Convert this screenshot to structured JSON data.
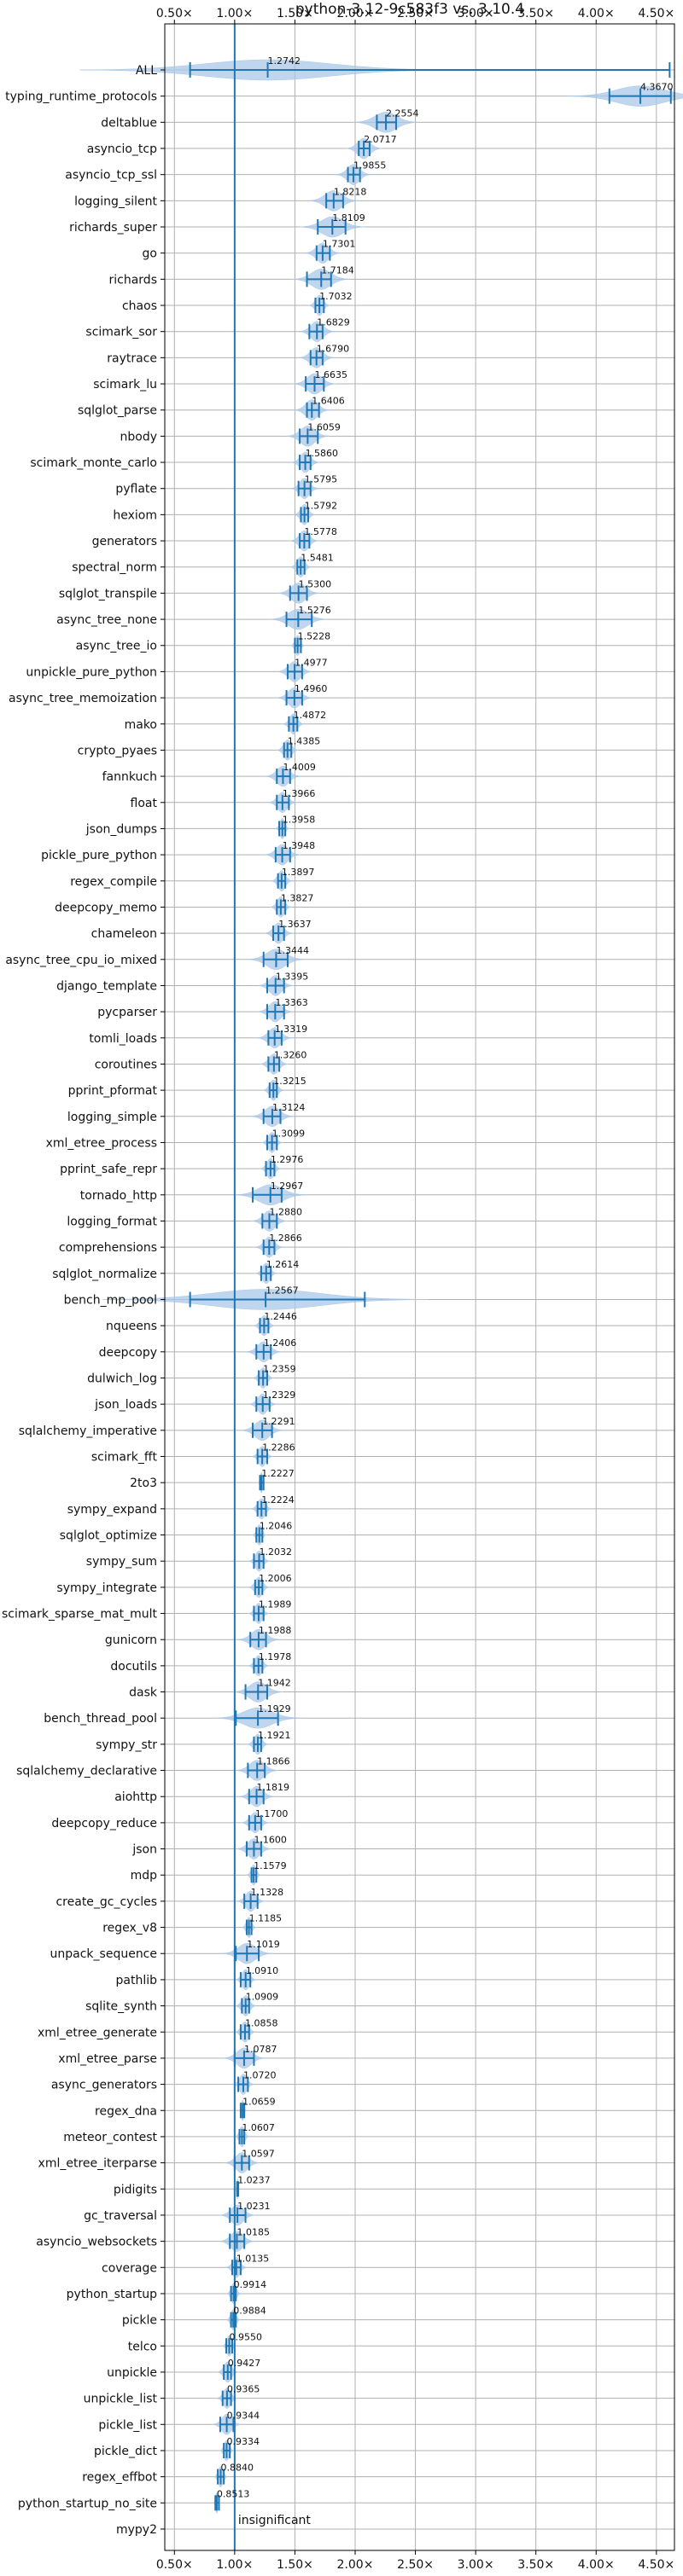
{
  "chart_data": {
    "type": "violin",
    "orientation": "horizontal",
    "title": "python-3.12-9c583f3 vs. 3.10.4",
    "x_ticks": [
      "0.50×",
      "1.00×",
      "1.50×",
      "2.00×",
      "2.50×",
      "3.00×",
      "3.50×",
      "4.00×",
      "4.50×"
    ],
    "x_tick_values": [
      0.5,
      1.0,
      1.5,
      2.0,
      2.5,
      3.0,
      3.5,
      4.0,
      4.5
    ],
    "xlim": [
      0.42,
      4.65
    ],
    "grid": true,
    "reference_line": 1.0,
    "colors": {
      "violin": "#a9c8e8",
      "line": "#1f77b4",
      "grid": "#b0b0b0"
    },
    "annotation": "insignificant",
    "benchmarks": [
      {
        "name": "ALL",
        "value": 1.2742,
        "label": "1.2742",
        "min": 0.63,
        "max": 4.61,
        "spread": 0.52
      },
      {
        "name": "typing_runtime_protocols",
        "value": 4.367,
        "label": "4.3670",
        "min": 4.11,
        "max": 4.62,
        "spread": 0.2
      },
      {
        "name": "deltablue",
        "value": 2.2554,
        "label": "2.2554",
        "min": 2.18,
        "max": 2.34,
        "spread": 0.09
      },
      {
        "name": "asyncio_tcp",
        "value": 2.0717,
        "label": "2.0717",
        "min": 2.03,
        "max": 2.12,
        "spread": 0.05
      },
      {
        "name": "asyncio_tcp_ssl",
        "value": 1.9855,
        "label": "1.9855",
        "min": 1.94,
        "max": 2.04,
        "spread": 0.05
      },
      {
        "name": "logging_silent",
        "value": 1.8218,
        "label": "1.8218",
        "min": 1.76,
        "max": 1.9,
        "spread": 0.07
      },
      {
        "name": "richards_super",
        "value": 1.8109,
        "label": "1.8109",
        "min": 1.69,
        "max": 1.92,
        "spread": 0.09
      },
      {
        "name": "go",
        "value": 1.7301,
        "label": "1.7301",
        "min": 1.68,
        "max": 1.79,
        "spread": 0.05
      },
      {
        "name": "richards",
        "value": 1.7184,
        "label": "1.7184",
        "min": 1.6,
        "max": 1.8,
        "spread": 0.08
      },
      {
        "name": "chaos",
        "value": 1.7032,
        "label": "1.7032",
        "min": 1.67,
        "max": 1.74,
        "spread": 0.03
      },
      {
        "name": "scimark_sor",
        "value": 1.6829,
        "label": "1.6829",
        "min": 1.62,
        "max": 1.73,
        "spread": 0.05
      },
      {
        "name": "raytrace",
        "value": 1.679,
        "label": "1.6790",
        "min": 1.63,
        "max": 1.73,
        "spread": 0.05
      },
      {
        "name": "scimark_lu",
        "value": 1.6635,
        "label": "1.6635",
        "min": 1.59,
        "max": 1.74,
        "spread": 0.06
      },
      {
        "name": "sqlglot_parse",
        "value": 1.6406,
        "label": "1.6406",
        "min": 1.6,
        "max": 1.7,
        "spread": 0.05
      },
      {
        "name": "nbody",
        "value": 1.6059,
        "label": "1.6059",
        "min": 1.54,
        "max": 1.69,
        "spread": 0.06
      },
      {
        "name": "scimark_monte_carlo",
        "value": 1.586,
        "label": "1.5860",
        "min": 1.54,
        "max": 1.63,
        "spread": 0.04
      },
      {
        "name": "pyflate",
        "value": 1.5795,
        "label": "1.5795",
        "min": 1.53,
        "max": 1.63,
        "spread": 0.04
      },
      {
        "name": "hexiom",
        "value": 1.5792,
        "label": "1.5792",
        "min": 1.55,
        "max": 1.61,
        "spread": 0.03
      },
      {
        "name": "generators",
        "value": 1.5778,
        "label": "1.5778",
        "min": 1.54,
        "max": 1.62,
        "spread": 0.04
      },
      {
        "name": "spectral_norm",
        "value": 1.5481,
        "label": "1.5481",
        "min": 1.52,
        "max": 1.58,
        "spread": 0.03
      },
      {
        "name": "sqlglot_transpile",
        "value": 1.53,
        "label": "1.5300",
        "min": 1.46,
        "max": 1.6,
        "spread": 0.06
      },
      {
        "name": "async_tree_none",
        "value": 1.5276,
        "label": "1.5276",
        "min": 1.43,
        "max": 1.64,
        "spread": 0.08
      },
      {
        "name": "async_tree_io",
        "value": 1.5228,
        "label": "1.5228",
        "min": 1.5,
        "max": 1.55,
        "spread": 0.02
      },
      {
        "name": "unpickle_pure_python",
        "value": 1.4977,
        "label": "1.4977",
        "min": 1.44,
        "max": 1.56,
        "spread": 0.05
      },
      {
        "name": "async_tree_memoization",
        "value": 1.496,
        "label": "1.4960",
        "min": 1.43,
        "max": 1.56,
        "spread": 0.05
      },
      {
        "name": "mako",
        "value": 1.4872,
        "label": "1.4872",
        "min": 1.45,
        "max": 1.52,
        "spread": 0.03
      },
      {
        "name": "crypto_pyaes",
        "value": 1.4385,
        "label": "1.4385",
        "min": 1.41,
        "max": 1.47,
        "spread": 0.03
      },
      {
        "name": "fannkuch",
        "value": 1.4009,
        "label": "1.4009",
        "min": 1.35,
        "max": 1.46,
        "spread": 0.05
      },
      {
        "name": "float",
        "value": 1.3966,
        "label": "1.3966",
        "min": 1.35,
        "max": 1.45,
        "spread": 0.04
      },
      {
        "name": "json_dumps",
        "value": 1.3958,
        "label": "1.3958",
        "min": 1.37,
        "max": 1.42,
        "spread": 0.02
      },
      {
        "name": "pickle_pure_python",
        "value": 1.3948,
        "label": "1.3948",
        "min": 1.34,
        "max": 1.46,
        "spread": 0.05
      },
      {
        "name": "regex_compile",
        "value": 1.3897,
        "label": "1.3897",
        "min": 1.36,
        "max": 1.42,
        "spread": 0.03
      },
      {
        "name": "deepcopy_memo",
        "value": 1.3827,
        "label": "1.3827",
        "min": 1.35,
        "max": 1.42,
        "spread": 0.03
      },
      {
        "name": "chameleon",
        "value": 1.3637,
        "label": "1.3637",
        "min": 1.32,
        "max": 1.41,
        "spread": 0.04
      },
      {
        "name": "async_tree_cpu_io_mixed",
        "value": 1.3444,
        "label": "1.3444",
        "min": 1.24,
        "max": 1.44,
        "spread": 0.08
      },
      {
        "name": "django_template",
        "value": 1.3395,
        "label": "1.3395",
        "min": 1.27,
        "max": 1.41,
        "spread": 0.05
      },
      {
        "name": "pycparser",
        "value": 1.3363,
        "label": "1.3363",
        "min": 1.27,
        "max": 1.41,
        "spread": 0.05
      },
      {
        "name": "tomli_loads",
        "value": 1.3319,
        "label": "1.3319",
        "min": 1.28,
        "max": 1.39,
        "spread": 0.05
      },
      {
        "name": "coroutines",
        "value": 1.326,
        "label": "1.3260",
        "min": 1.28,
        "max": 1.37,
        "spread": 0.04
      },
      {
        "name": "pprint_pformat",
        "value": 1.3215,
        "label": "1.3215",
        "min": 1.29,
        "max": 1.35,
        "spread": 0.03
      },
      {
        "name": "logging_simple",
        "value": 1.3124,
        "label": "1.3124",
        "min": 1.24,
        "max": 1.38,
        "spread": 0.06
      },
      {
        "name": "xml_etree_process",
        "value": 1.3099,
        "label": "1.3099",
        "min": 1.27,
        "max": 1.35,
        "spread": 0.03
      },
      {
        "name": "pprint_safe_repr",
        "value": 1.2976,
        "label": "1.2976",
        "min": 1.26,
        "max": 1.33,
        "spread": 0.03
      },
      {
        "name": "tornado_http",
        "value": 1.2967,
        "label": "1.2967",
        "min": 1.15,
        "max": 1.39,
        "spread": 0.1
      },
      {
        "name": "logging_format",
        "value": 1.288,
        "label": "1.2880",
        "min": 1.23,
        "max": 1.35,
        "spread": 0.05
      },
      {
        "name": "comprehensions",
        "value": 1.2866,
        "label": "1.2866",
        "min": 1.24,
        "max": 1.33,
        "spread": 0.04
      },
      {
        "name": "sqlglot_normalize",
        "value": 1.2614,
        "label": "1.2614",
        "min": 1.22,
        "max": 1.3,
        "spread": 0.03
      },
      {
        "name": "bench_mp_pool",
        "value": 1.2567,
        "label": "1.2567",
        "min": 0.63,
        "max": 2.08,
        "spread": 0.45
      },
      {
        "name": "nqueens",
        "value": 1.2446,
        "label": "1.2446",
        "min": 1.21,
        "max": 1.28,
        "spread": 0.03
      },
      {
        "name": "deepcopy",
        "value": 1.2406,
        "label": "1.2406",
        "min": 1.18,
        "max": 1.3,
        "spread": 0.05
      },
      {
        "name": "dulwich_log",
        "value": 1.2359,
        "label": "1.2359",
        "min": 1.2,
        "max": 1.27,
        "spread": 0.03
      },
      {
        "name": "json_loads",
        "value": 1.2329,
        "label": "1.2329",
        "min": 1.18,
        "max": 1.29,
        "spread": 0.04
      },
      {
        "name": "sqlalchemy_imperative",
        "value": 1.2291,
        "label": "1.2291",
        "min": 1.15,
        "max": 1.31,
        "spread": 0.06
      },
      {
        "name": "scimark_fft",
        "value": 1.2286,
        "label": "1.2286",
        "min": 1.19,
        "max": 1.27,
        "spread": 0.03
      },
      {
        "name": "2to3",
        "value": 1.2227,
        "label": "1.2227",
        "min": 1.21,
        "max": 1.24,
        "spread": 0.01
      },
      {
        "name": "sympy_expand",
        "value": 1.2224,
        "label": "1.2224",
        "min": 1.19,
        "max": 1.26,
        "spread": 0.03
      },
      {
        "name": "sqlglot_optimize",
        "value": 1.2046,
        "label": "1.2046",
        "min": 1.18,
        "max": 1.23,
        "spread": 0.02
      },
      {
        "name": "sympy_sum",
        "value": 1.2032,
        "label": "1.2032",
        "min": 1.16,
        "max": 1.24,
        "spread": 0.03
      },
      {
        "name": "sympy_integrate",
        "value": 1.2006,
        "label": "1.2006",
        "min": 1.17,
        "max": 1.23,
        "spread": 0.03
      },
      {
        "name": "scimark_sparse_mat_mult",
        "value": 1.1989,
        "label": "1.1989",
        "min": 1.16,
        "max": 1.24,
        "spread": 0.03
      },
      {
        "name": "gunicorn",
        "value": 1.1988,
        "label": "1.1988",
        "min": 1.13,
        "max": 1.26,
        "spread": 0.06
      },
      {
        "name": "docutils",
        "value": 1.1978,
        "label": "1.1978",
        "min": 1.16,
        "max": 1.23,
        "spread": 0.03
      },
      {
        "name": "dask",
        "value": 1.1942,
        "label": "1.1942",
        "min": 1.09,
        "max": 1.27,
        "spread": 0.07
      },
      {
        "name": "bench_thread_pool",
        "value": 1.1929,
        "label": "1.1929",
        "min": 1.01,
        "max": 1.36,
        "spread": 0.12
      },
      {
        "name": "sympy_str",
        "value": 1.1921,
        "label": "1.1921",
        "min": 1.16,
        "max": 1.22,
        "spread": 0.03
      },
      {
        "name": "sqlalchemy_declarative",
        "value": 1.1866,
        "label": "1.1866",
        "min": 1.11,
        "max": 1.25,
        "spread": 0.06
      },
      {
        "name": "aiohttp",
        "value": 1.1819,
        "label": "1.1819",
        "min": 1.12,
        "max": 1.24,
        "spread": 0.05
      },
      {
        "name": "deepcopy_reduce",
        "value": 1.17,
        "label": "1.1700",
        "min": 1.12,
        "max": 1.22,
        "spread": 0.04
      },
      {
        "name": "json",
        "value": 1.16,
        "label": "1.1600",
        "min": 1.1,
        "max": 1.22,
        "spread": 0.05
      },
      {
        "name": "mdp",
        "value": 1.1579,
        "label": "1.1579",
        "min": 1.14,
        "max": 1.18,
        "spread": 0.02
      },
      {
        "name": "create_gc_cycles",
        "value": 1.1328,
        "label": "1.1328",
        "min": 1.08,
        "max": 1.19,
        "spread": 0.04
      },
      {
        "name": "regex_v8",
        "value": 1.1185,
        "label": "1.1185",
        "min": 1.1,
        "max": 1.14,
        "spread": 0.02
      },
      {
        "name": "unpack_sequence",
        "value": 1.1019,
        "label": "1.1019",
        "min": 1.01,
        "max": 1.2,
        "spread": 0.07
      },
      {
        "name": "pathlib",
        "value": 1.091,
        "label": "1.0910",
        "min": 1.05,
        "max": 1.13,
        "spread": 0.03
      },
      {
        "name": "sqlite_synth",
        "value": 1.0909,
        "label": "1.0909",
        "min": 1.06,
        "max": 1.12,
        "spread": 0.03
      },
      {
        "name": "xml_etree_generate",
        "value": 1.0858,
        "label": "1.0858",
        "min": 1.05,
        "max": 1.12,
        "spread": 0.03
      },
      {
        "name": "xml_etree_parse",
        "value": 1.0787,
        "label": "1.0787",
        "min": 1.0,
        "max": 1.16,
        "spread": 0.06
      },
      {
        "name": "async_generators",
        "value": 1.072,
        "label": "1.0720",
        "min": 1.03,
        "max": 1.11,
        "spread": 0.03
      },
      {
        "name": "regex_dna",
        "value": 1.0659,
        "label": "1.0659",
        "min": 1.05,
        "max": 1.08,
        "spread": 0.01
      },
      {
        "name": "meteor_contest",
        "value": 1.0607,
        "label": "1.0607",
        "min": 1.04,
        "max": 1.08,
        "spread": 0.02
      },
      {
        "name": "xml_etree_iterparse",
        "value": 1.0597,
        "label": "1.0597",
        "min": 1.0,
        "max": 1.12,
        "spread": 0.05
      },
      {
        "name": "pidigits",
        "value": 1.0237,
        "label": "1.0237",
        "min": 1.02,
        "max": 1.03,
        "spread": 0.005
      },
      {
        "name": "gc_traversal",
        "value": 1.0231,
        "label": "1.0231",
        "min": 0.96,
        "max": 1.09,
        "spread": 0.05
      },
      {
        "name": "asyncio_websockets",
        "value": 1.0185,
        "label": "1.0185",
        "min": 0.96,
        "max": 1.08,
        "spread": 0.05
      },
      {
        "name": "coverage",
        "value": 1.0135,
        "label": "1.0135",
        "min": 0.98,
        "max": 1.05,
        "spread": 0.03
      },
      {
        "name": "python_startup",
        "value": 0.9914,
        "label": "0.9914",
        "min": 0.97,
        "max": 1.01,
        "spread": 0.02
      },
      {
        "name": "pickle",
        "value": 0.9884,
        "label": "0.9884",
        "min": 0.97,
        "max": 1.01,
        "spread": 0.02
      },
      {
        "name": "telco",
        "value": 0.955,
        "label": "0.9550",
        "min": 0.93,
        "max": 0.98,
        "spread": 0.02
      },
      {
        "name": "unpickle",
        "value": 0.9427,
        "label": "0.9427",
        "min": 0.91,
        "max": 0.97,
        "spread": 0.03
      },
      {
        "name": "unpickle_list",
        "value": 0.9365,
        "label": "0.9365",
        "min": 0.9,
        "max": 0.97,
        "spread": 0.03
      },
      {
        "name": "pickle_list",
        "value": 0.9344,
        "label": "0.9344",
        "min": 0.88,
        "max": 0.99,
        "spread": 0.04
      },
      {
        "name": "pickle_dict",
        "value": 0.9334,
        "label": "0.9334",
        "min": 0.91,
        "max": 0.96,
        "spread": 0.02
      },
      {
        "name": "regex_effbot",
        "value": 0.884,
        "label": "0.8840",
        "min": 0.86,
        "max": 0.91,
        "spread": 0.02
      },
      {
        "name": "python_startup_no_site",
        "value": 0.8513,
        "label": "0.8513",
        "min": 0.84,
        "max": 0.87,
        "spread": 0.01
      },
      {
        "name": "mypy2",
        "value": null,
        "label": "",
        "min": null,
        "max": null,
        "spread": 0
      }
    ]
  }
}
